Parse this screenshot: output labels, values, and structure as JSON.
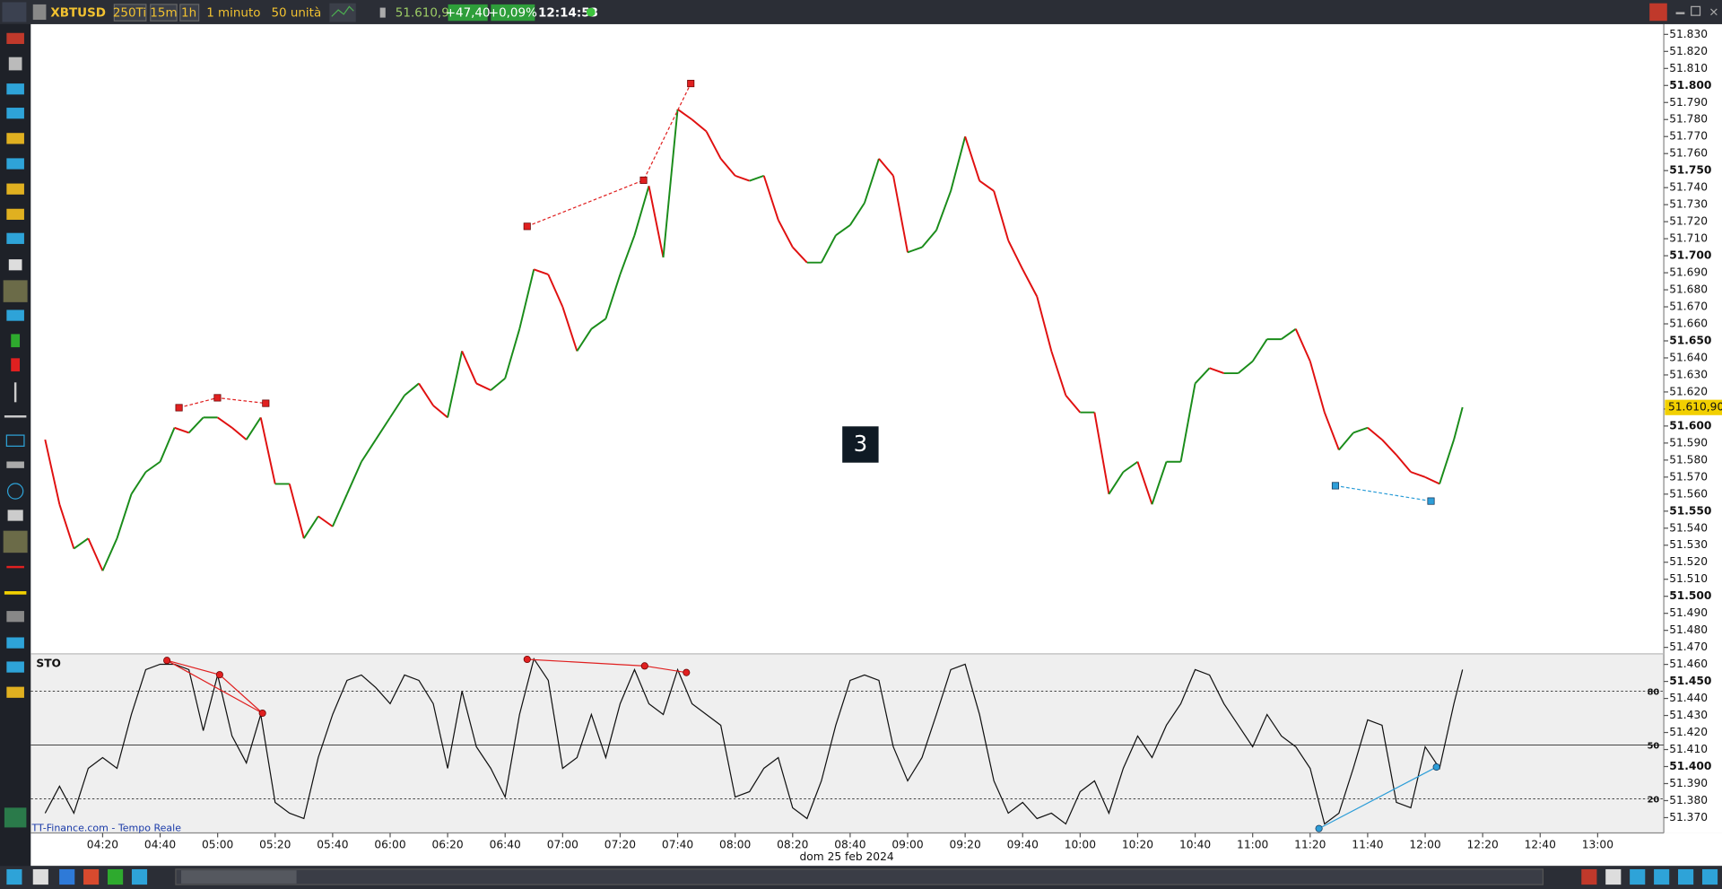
{
  "toolbar": {
    "symbol": "XBTUSD",
    "buttons": [
      "250Ti",
      "15m",
      "1h"
    ],
    "interval": "1 minuto",
    "units": "50 unità",
    "price": "51.610,90",
    "change": "+47,40",
    "change_pct": "+0,09%",
    "clock": "12:14:53"
  },
  "overlay_label": "3",
  "source": "TT-Finance.com - Tempo Reale",
  "chart_data": [
    {
      "type": "line",
      "up_color": "#1a8c1a",
      "down_color": "#e01010",
      "x": [
        "04:00",
        "04:05",
        "04:10",
        "04:15",
        "04:20",
        "04:25",
        "04:30",
        "04:35",
        "04:40",
        "04:45",
        "04:50",
        "04:55",
        "05:00",
        "05:05",
        "05:10",
        "05:15",
        "05:20",
        "05:25",
        "05:30",
        "05:35",
        "05:40",
        "05:45",
        "05:50",
        "05:55",
        "06:00",
        "06:05",
        "06:10",
        "06:15",
        "06:20",
        "06:25",
        "06:30",
        "06:35",
        "06:40",
        "06:45",
        "06:50",
        "06:55",
        "07:00",
        "07:05",
        "07:10",
        "07:15",
        "07:20",
        "07:25",
        "07:30",
        "07:35",
        "07:40",
        "07:45",
        "07:50",
        "07:55",
        "08:00",
        "08:05",
        "08:10",
        "08:15",
        "08:20",
        "08:25",
        "08:30",
        "08:35",
        "08:40",
        "08:45",
        "08:50",
        "08:55",
        "09:00",
        "09:05",
        "09:10",
        "09:15",
        "09:20",
        "09:25",
        "09:30",
        "09:35",
        "09:40",
        "09:45",
        "09:50",
        "09:55",
        "10:00",
        "10:05",
        "10:10",
        "10:15",
        "10:20",
        "10:25",
        "10:30",
        "10:35",
        "10:40",
        "10:45",
        "10:50",
        "10:55",
        "11:00",
        "11:05",
        "11:10",
        "11:15",
        "11:20",
        "11:25",
        "11:30",
        "11:35",
        "11:40",
        "11:45",
        "11:50",
        "11:55",
        "12:00",
        "12:05",
        "12:10",
        "12:13"
      ],
      "values": [
        51592,
        51554,
        51528,
        51534,
        51515,
        51534,
        51560,
        51573,
        51579,
        51599,
        51596,
        51605,
        51605,
        51599,
        51592,
        51605,
        51566,
        51566,
        51534,
        51547,
        51541,
        51560,
        51579,
        51592,
        51605,
        51618,
        51625,
        51612,
        51605,
        51644,
        51625,
        51621,
        51628,
        51657,
        51692,
        51689,
        51670,
        51644,
        51657,
        51663,
        51689,
        51712,
        51741,
        51699,
        51786,
        51780,
        51773,
        51757,
        51747,
        51744,
        51747,
        51721,
        51705,
        51696,
        51696,
        51712,
        51718,
        51731,
        51757,
        51747,
        51702,
        51705,
        51715,
        51738,
        51770,
        51744,
        51738,
        51709,
        51692,
        51676,
        51644,
        51618,
        51608,
        51608,
        51560,
        51573,
        51579,
        51554,
        51579,
        51579,
        51625,
        51634,
        51631,
        51631,
        51638,
        51651,
        51651,
        51657,
        51638,
        51608,
        51586,
        51596,
        51599,
        51592,
        51583,
        51573,
        51570,
        51566,
        51592,
        51611
      ],
      "xlim": [
        "03:55",
        "13:23"
      ],
      "ylim": [
        51361,
        51836
      ],
      "yticks": [
        {
          "value": 51370,
          "label": "51.370"
        },
        {
          "value": 51380,
          "label": "51.380"
        },
        {
          "value": 51390,
          "label": "51.390"
        },
        {
          "value": 51400,
          "label": "51.400"
        },
        {
          "value": 51410,
          "label": "51.410"
        },
        {
          "value": 51420,
          "label": "51.420"
        },
        {
          "value": 51430,
          "label": "51.430"
        },
        {
          "value": 51440,
          "label": "51.440"
        },
        {
          "value": 51450,
          "label": "51.450"
        },
        {
          "value": 51460,
          "label": "51.460"
        },
        {
          "value": 51470,
          "label": "51.470"
        },
        {
          "value": 51480,
          "label": "51.480"
        },
        {
          "value": 51490,
          "label": "51.490"
        },
        {
          "value": 51500,
          "label": "51.500"
        },
        {
          "value": 51510,
          "label": "51.510"
        },
        {
          "value": 51520,
          "label": "51.520"
        },
        {
          "value": 51530,
          "label": "51.530"
        },
        {
          "value": 51540,
          "label": "51.540"
        },
        {
          "value": 51550,
          "label": "51.550"
        },
        {
          "value": 51560,
          "label": "51.560"
        },
        {
          "value": 51570,
          "label": "51.570"
        },
        {
          "value": 51580,
          "label": "51.580"
        },
        {
          "value": 51590,
          "label": "51.590"
        },
        {
          "value": 51600,
          "label": "51.600"
        },
        {
          "value": 51610,
          "label": "51.610"
        },
        {
          "value": 51620,
          "label": "51.620"
        },
        {
          "value": 51630,
          "label": "51.630"
        },
        {
          "value": 51640,
          "label": "51.640"
        },
        {
          "value": 51650,
          "label": "51.650"
        },
        {
          "value": 51660,
          "label": "51.660"
        },
        {
          "value": 51670,
          "label": "51.670"
        },
        {
          "value": 51680,
          "label": "51.680"
        },
        {
          "value": 51690,
          "label": "51.690"
        },
        {
          "value": 51700,
          "label": "51.700"
        },
        {
          "value": 51710,
          "label": "51.710"
        },
        {
          "value": 51720,
          "label": "51.720"
        },
        {
          "value": 51730,
          "label": "51.730"
        },
        {
          "value": 51740,
          "label": "51.740"
        },
        {
          "value": 51750,
          "label": "51.750"
        },
        {
          "value": 51760,
          "label": "51.760"
        },
        {
          "value": 51770,
          "label": "51.770"
        },
        {
          "value": 51780,
          "label": "51.780"
        },
        {
          "value": 51790,
          "label": "51.790"
        },
        {
          "value": 51800,
          "label": "51.800"
        },
        {
          "value": 51810,
          "label": "51.810"
        },
        {
          "value": 51820,
          "label": "51.820"
        },
        {
          "value": 51830,
          "label": "51.830"
        }
      ],
      "last_price": 51610.9,
      "last_price_label": "51.610,90"
    },
    {
      "type": "line",
      "title": "STO",
      "color": "#111111",
      "x_label": "dom 25 feb 2024",
      "x": [
        "04:00",
        "04:05",
        "04:10",
        "04:15",
        "04:20",
        "04:25",
        "04:30",
        "04:35",
        "04:40",
        "04:45",
        "04:50",
        "04:55",
        "05:00",
        "05:05",
        "05:10",
        "05:15",
        "05:20",
        "05:25",
        "05:30",
        "05:35",
        "05:40",
        "05:45",
        "05:50",
        "05:55",
        "06:00",
        "06:05",
        "06:10",
        "06:15",
        "06:20",
        "06:25",
        "06:30",
        "06:35",
        "06:40",
        "06:45",
        "06:50",
        "06:55",
        "07:00",
        "07:05",
        "07:10",
        "07:15",
        "07:20",
        "07:25",
        "07:30",
        "07:35",
        "07:40",
        "07:45",
        "07:50",
        "07:55",
        "08:00",
        "08:05",
        "08:10",
        "08:15",
        "08:20",
        "08:25",
        "08:30",
        "08:35",
        "08:40",
        "08:45",
        "08:50",
        "08:55",
        "09:00",
        "09:05",
        "09:10",
        "09:15",
        "09:20",
        "09:25",
        "09:30",
        "09:35",
        "09:40",
        "09:45",
        "09:50",
        "09:55",
        "10:00",
        "10:05",
        "10:10",
        "10:15",
        "10:20",
        "10:25",
        "10:30",
        "10:35",
        "10:40",
        "10:45",
        "10:50",
        "10:55",
        "11:00",
        "11:05",
        "11:10",
        "11:15",
        "11:20",
        "11:25",
        "11:30",
        "11:35",
        "11:40",
        "11:45",
        "11:50",
        "11:55",
        "12:00",
        "12:05",
        "12:10",
        "12:13"
      ],
      "values": [
        12,
        27,
        12,
        37,
        43,
        37,
        67,
        92,
        95,
        95,
        92,
        58,
        89,
        55,
        40,
        67,
        18,
        12,
        9,
        43,
        67,
        86,
        89,
        82,
        73,
        89,
        86,
        73,
        37,
        80,
        49,
        37,
        21,
        67,
        98,
        86,
        37,
        43,
        67,
        43,
        73,
        92,
        73,
        67,
        92,
        73,
        67,
        61,
        21,
        24,
        37,
        43,
        15,
        9,
        30,
        61,
        86,
        89,
        86,
        49,
        30,
        43,
        67,
        92,
        95,
        67,
        30,
        12,
        18,
        9,
        12,
        6,
        24,
        30,
        12,
        37,
        55,
        43,
        61,
        73,
        92,
        89,
        73,
        61,
        49,
        67,
        55,
        49,
        37,
        6,
        12,
        37,
        64,
        61,
        18,
        15,
        49,
        37,
        73,
        92
      ],
      "xlim": [
        "03:55",
        "13:23"
      ],
      "ylim": [
        0,
        100
      ],
      "yticks": [
        20,
        50,
        80
      ],
      "ytick_styles": [
        "dotted",
        "solid",
        "dotted"
      ],
      "xticks": [
        "04:20",
        "04:40",
        "05:00",
        "05:20",
        "05:40",
        "06:00",
        "06:20",
        "06:40",
        "07:00",
        "07:20",
        "07:40",
        "08:00",
        "08:20",
        "08:40",
        "09:00",
        "09:20",
        "09:40",
        "10:00",
        "10:20",
        "10:40",
        "11:00",
        "11:20",
        "11:40",
        "12:00",
        "12:20",
        "12:40",
        "13:00"
      ]
    }
  ]
}
